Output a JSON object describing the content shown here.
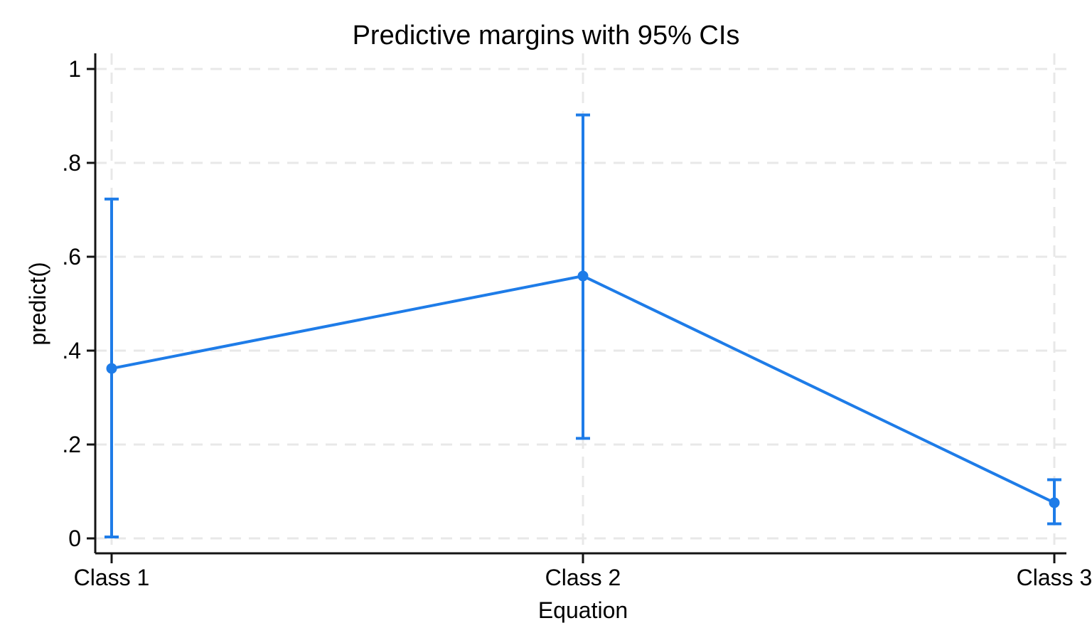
{
  "chart_data": {
    "type": "line",
    "title": "Predictive margins with 95% CIs",
    "xlabel": "Equation",
    "ylabel": "predict()",
    "categories": [
      "Class 1",
      "Class 2",
      "Class 3"
    ],
    "series": [
      {
        "name": "Predictive margin",
        "values": [
          0.362,
          0.559,
          0.076
        ],
        "ci_lower": [
          0.003,
          0.213,
          0.031
        ],
        "ci_upper": [
          0.723,
          0.902,
          0.125
        ]
      }
    ],
    "ylim": [
      0,
      1
    ],
    "yticks": [
      0,
      0.2,
      0.4,
      0.6,
      0.8,
      1
    ],
    "ytick_labels": [
      "0",
      ".2",
      ".4",
      ".6",
      ".8",
      "1"
    ],
    "grid": "dashed",
    "legend": "none",
    "marker": "circle",
    "colors": {
      "series": "#1e7ce8",
      "axis": "#141414",
      "grid": "#e8e8e8",
      "text": "#000000",
      "background": "#ffffff"
    }
  }
}
